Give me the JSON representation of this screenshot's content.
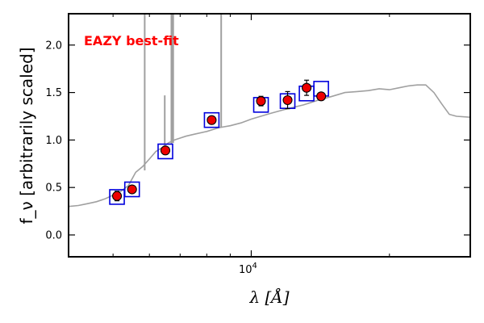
{
  "chart_data": {
    "type": "scatter",
    "xscale": "log",
    "xlim": [
      4000,
      30000
    ],
    "ylim": [
      -0.23,
      2.33
    ],
    "xlabel": "λ [Å]",
    "ylabel": "f_ν [arbitrarily scaled]",
    "annotation": "EAZY best-fit",
    "annotation_color": "#ff0000",
    "grid": false,
    "x_ticks": [
      {
        "value": 10000,
        "base": "10",
        "exponent": "4"
      }
    ],
    "y_ticks": [
      {
        "value": 0.0,
        "label": "0.0"
      },
      {
        "value": 0.5,
        "label": "0.5"
      },
      {
        "value": 1.0,
        "label": "1.0"
      },
      {
        "value": 1.5,
        "label": "1.5"
      },
      {
        "value": 2.0,
        "label": "2.0"
      }
    ],
    "series": [
      {
        "kind": "template",
        "color": "#a0a0a0",
        "x": [
          4000,
          4200,
          4400,
          4600,
          4800,
          5000,
          5200,
          5400,
          5600,
          5800,
          6000,
          6200,
          6400,
          6600,
          6800,
          7000,
          7200,
          7500,
          8000,
          8500,
          9000,
          9500,
          10000,
          11000,
          12000,
          13000,
          14000,
          15000,
          16000,
          17000,
          18000,
          19000,
          20000,
          21000,
          22000,
          23000,
          24000,
          25000,
          26000,
          27000,
          28000,
          30000
        ],
        "y": [
          0.3,
          0.31,
          0.33,
          0.35,
          0.38,
          0.42,
          0.46,
          0.52,
          0.66,
          0.72,
          0.8,
          0.88,
          0.92,
          0.97,
          1.0,
          1.02,
          1.04,
          1.06,
          1.09,
          1.13,
          1.15,
          1.18,
          1.22,
          1.28,
          1.33,
          1.37,
          1.42,
          1.46,
          1.5,
          1.51,
          1.52,
          1.54,
          1.53,
          1.55,
          1.57,
          1.58,
          1.58,
          1.5,
          1.38,
          1.27,
          1.25,
          1.24
        ]
      },
      {
        "kind": "emission_lines",
        "color": "#a0a0a0",
        "x": [
          5860,
          6480,
          6700,
          6750,
          6760,
          8600
        ],
        "y": [
          2.35,
          1.47,
          2.35,
          2.35,
          2.35,
          2.35
        ],
        "base": [
          0.68,
          0.9,
          0.96,
          0.97,
          0.97,
          1.13
        ]
      },
      {
        "kind": "model_photometry",
        "color": "#0000dd",
        "marker": "open-square",
        "x": [
          5100,
          5500,
          6500,
          8200,
          10500,
          12000,
          13200,
          14200
        ],
        "y": [
          0.4,
          0.48,
          0.88,
          1.21,
          1.37,
          1.41,
          1.49,
          1.54
        ]
      },
      {
        "kind": "observed_photometry",
        "color": "#ee0000",
        "marker": "filled-circle",
        "x": [
          5100,
          5500,
          6500,
          8200,
          10500,
          12000,
          13200,
          14200
        ],
        "y": [
          0.41,
          0.48,
          0.89,
          1.21,
          1.41,
          1.42,
          1.55,
          1.46
        ],
        "yerr": [
          0.05,
          0.03,
          0.04,
          0.04,
          0.05,
          0.09,
          0.08,
          0.04
        ]
      }
    ]
  }
}
